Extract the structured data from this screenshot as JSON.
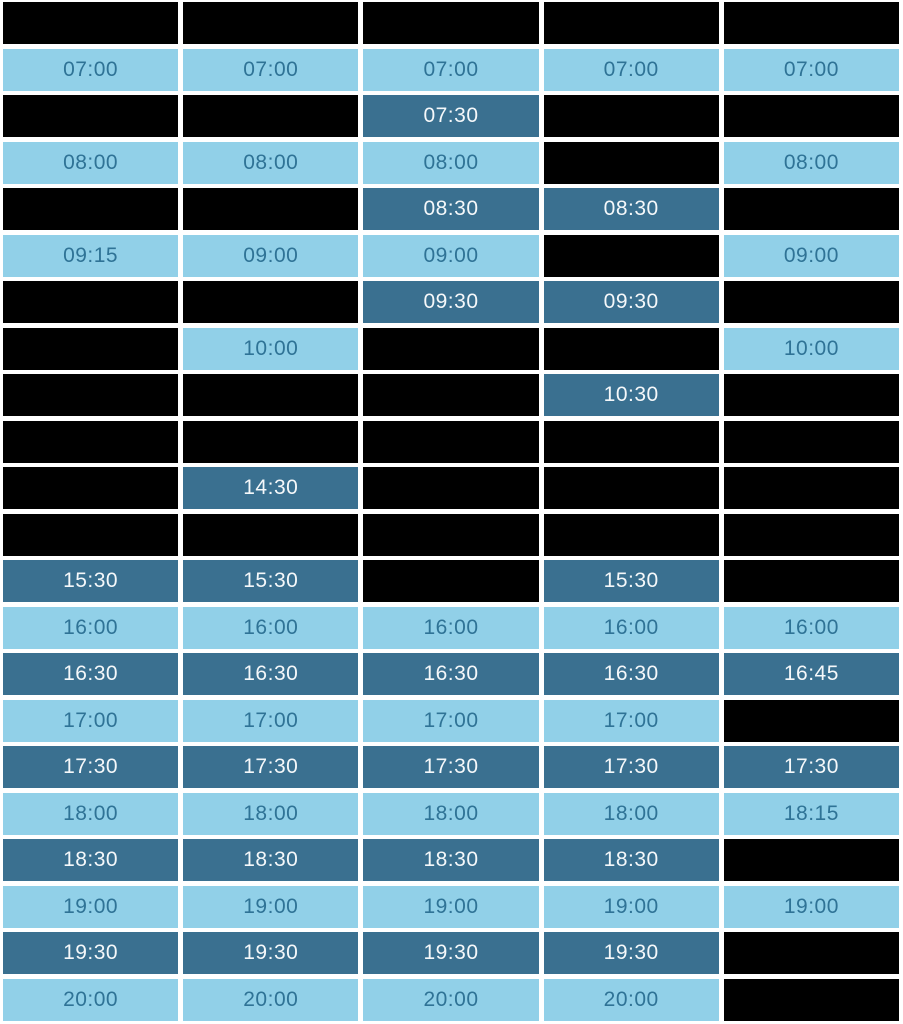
{
  "colors": {
    "page_background": "#ffffff",
    "slot_available_bg": "#91d0e8",
    "slot_available_text": "#2f7396",
    "slot_selected_bg": "#3a7090",
    "slot_selected_text": "#f5f8fa",
    "slot_blocked_bg": "#000000"
  },
  "grid": {
    "columns": 5,
    "rows": [
      {
        "cells": [
          {
            "time": "",
            "state": "blocked"
          },
          {
            "time": "",
            "state": "blocked"
          },
          {
            "time": "",
            "state": "blocked"
          },
          {
            "time": "",
            "state": "blocked"
          },
          {
            "time": "",
            "state": "blocked"
          }
        ]
      },
      {
        "cells": [
          {
            "time": "07:00",
            "state": "available"
          },
          {
            "time": "07:00",
            "state": "available"
          },
          {
            "time": "07:00",
            "state": "available"
          },
          {
            "time": "07:00",
            "state": "available"
          },
          {
            "time": "07:00",
            "state": "available"
          }
        ]
      },
      {
        "cells": [
          {
            "time": "",
            "state": "blocked"
          },
          {
            "time": "",
            "state": "blocked"
          },
          {
            "time": "07:30",
            "state": "selected"
          },
          {
            "time": "",
            "state": "blocked"
          },
          {
            "time": "",
            "state": "blocked"
          }
        ]
      },
      {
        "cells": [
          {
            "time": "08:00",
            "state": "available"
          },
          {
            "time": "08:00",
            "state": "available"
          },
          {
            "time": "08:00",
            "state": "available"
          },
          {
            "time": "",
            "state": "blocked"
          },
          {
            "time": "08:00",
            "state": "available"
          }
        ]
      },
      {
        "cells": [
          {
            "time": "",
            "state": "blocked"
          },
          {
            "time": "",
            "state": "blocked"
          },
          {
            "time": "08:30",
            "state": "selected"
          },
          {
            "time": "08:30",
            "state": "selected"
          },
          {
            "time": "",
            "state": "blocked"
          }
        ]
      },
      {
        "cells": [
          {
            "time": "09:15",
            "state": "available"
          },
          {
            "time": "09:00",
            "state": "available"
          },
          {
            "time": "09:00",
            "state": "available"
          },
          {
            "time": "",
            "state": "blocked"
          },
          {
            "time": "09:00",
            "state": "available"
          }
        ]
      },
      {
        "cells": [
          {
            "time": "",
            "state": "blocked"
          },
          {
            "time": "",
            "state": "blocked"
          },
          {
            "time": "09:30",
            "state": "selected"
          },
          {
            "time": "09:30",
            "state": "selected"
          },
          {
            "time": "",
            "state": "blocked"
          }
        ]
      },
      {
        "cells": [
          {
            "time": "",
            "state": "blocked"
          },
          {
            "time": "10:00",
            "state": "available"
          },
          {
            "time": "",
            "state": "blocked"
          },
          {
            "time": "",
            "state": "blocked"
          },
          {
            "time": "10:00",
            "state": "available"
          }
        ]
      },
      {
        "cells": [
          {
            "time": "",
            "state": "blocked"
          },
          {
            "time": "",
            "state": "blocked"
          },
          {
            "time": "",
            "state": "blocked"
          },
          {
            "time": "10:30",
            "state": "selected"
          },
          {
            "time": "",
            "state": "blocked"
          }
        ]
      },
      {
        "cells": [
          {
            "time": "",
            "state": "blocked"
          },
          {
            "time": "",
            "state": "blocked"
          },
          {
            "time": "",
            "state": "blocked"
          },
          {
            "time": "",
            "state": "blocked"
          },
          {
            "time": "",
            "state": "blocked"
          }
        ]
      },
      {
        "cells": [
          {
            "time": "",
            "state": "blocked"
          },
          {
            "time": "14:30",
            "state": "selected"
          },
          {
            "time": "",
            "state": "blocked"
          },
          {
            "time": "",
            "state": "blocked"
          },
          {
            "time": "",
            "state": "blocked"
          }
        ]
      },
      {
        "cells": [
          {
            "time": "",
            "state": "blocked"
          },
          {
            "time": "",
            "state": "blocked"
          },
          {
            "time": "",
            "state": "blocked"
          },
          {
            "time": "",
            "state": "blocked"
          },
          {
            "time": "",
            "state": "blocked"
          }
        ]
      },
      {
        "cells": [
          {
            "time": "15:30",
            "state": "selected"
          },
          {
            "time": "15:30",
            "state": "selected"
          },
          {
            "time": "",
            "state": "blocked"
          },
          {
            "time": "15:30",
            "state": "selected"
          },
          {
            "time": "",
            "state": "blocked"
          }
        ]
      },
      {
        "cells": [
          {
            "time": "16:00",
            "state": "available"
          },
          {
            "time": "16:00",
            "state": "available"
          },
          {
            "time": "16:00",
            "state": "available"
          },
          {
            "time": "16:00",
            "state": "available"
          },
          {
            "time": "16:00",
            "state": "available"
          }
        ]
      },
      {
        "cells": [
          {
            "time": "16:30",
            "state": "selected"
          },
          {
            "time": "16:30",
            "state": "selected"
          },
          {
            "time": "16:30",
            "state": "selected"
          },
          {
            "time": "16:30",
            "state": "selected"
          },
          {
            "time": "16:45",
            "state": "selected"
          }
        ]
      },
      {
        "cells": [
          {
            "time": "17:00",
            "state": "available"
          },
          {
            "time": "17:00",
            "state": "available"
          },
          {
            "time": "17:00",
            "state": "available"
          },
          {
            "time": "17:00",
            "state": "available"
          },
          {
            "time": "",
            "state": "blocked"
          }
        ]
      },
      {
        "cells": [
          {
            "time": "17:30",
            "state": "selected"
          },
          {
            "time": "17:30",
            "state": "selected"
          },
          {
            "time": "17:30",
            "state": "selected"
          },
          {
            "time": "17:30",
            "state": "selected"
          },
          {
            "time": "17:30",
            "state": "selected"
          }
        ]
      },
      {
        "cells": [
          {
            "time": "18:00",
            "state": "available"
          },
          {
            "time": "18:00",
            "state": "available"
          },
          {
            "time": "18:00",
            "state": "available"
          },
          {
            "time": "18:00",
            "state": "available"
          },
          {
            "time": "18:15",
            "state": "available"
          }
        ]
      },
      {
        "cells": [
          {
            "time": "18:30",
            "state": "selected"
          },
          {
            "time": "18:30",
            "state": "selected"
          },
          {
            "time": "18:30",
            "state": "selected"
          },
          {
            "time": "18:30",
            "state": "selected"
          },
          {
            "time": "",
            "state": "blocked"
          }
        ]
      },
      {
        "cells": [
          {
            "time": "19:00",
            "state": "available"
          },
          {
            "time": "19:00",
            "state": "available"
          },
          {
            "time": "19:00",
            "state": "available"
          },
          {
            "time": "19:00",
            "state": "available"
          },
          {
            "time": "19:00",
            "state": "available"
          }
        ]
      },
      {
        "cells": [
          {
            "time": "19:30",
            "state": "selected"
          },
          {
            "time": "19:30",
            "state": "selected"
          },
          {
            "time": "19:30",
            "state": "selected"
          },
          {
            "time": "19:30",
            "state": "selected"
          },
          {
            "time": "",
            "state": "blocked"
          }
        ]
      },
      {
        "cells": [
          {
            "time": "20:00",
            "state": "available"
          },
          {
            "time": "20:00",
            "state": "available"
          },
          {
            "time": "20:00",
            "state": "available"
          },
          {
            "time": "20:00",
            "state": "available"
          },
          {
            "time": "",
            "state": "blocked"
          }
        ]
      }
    ]
  }
}
